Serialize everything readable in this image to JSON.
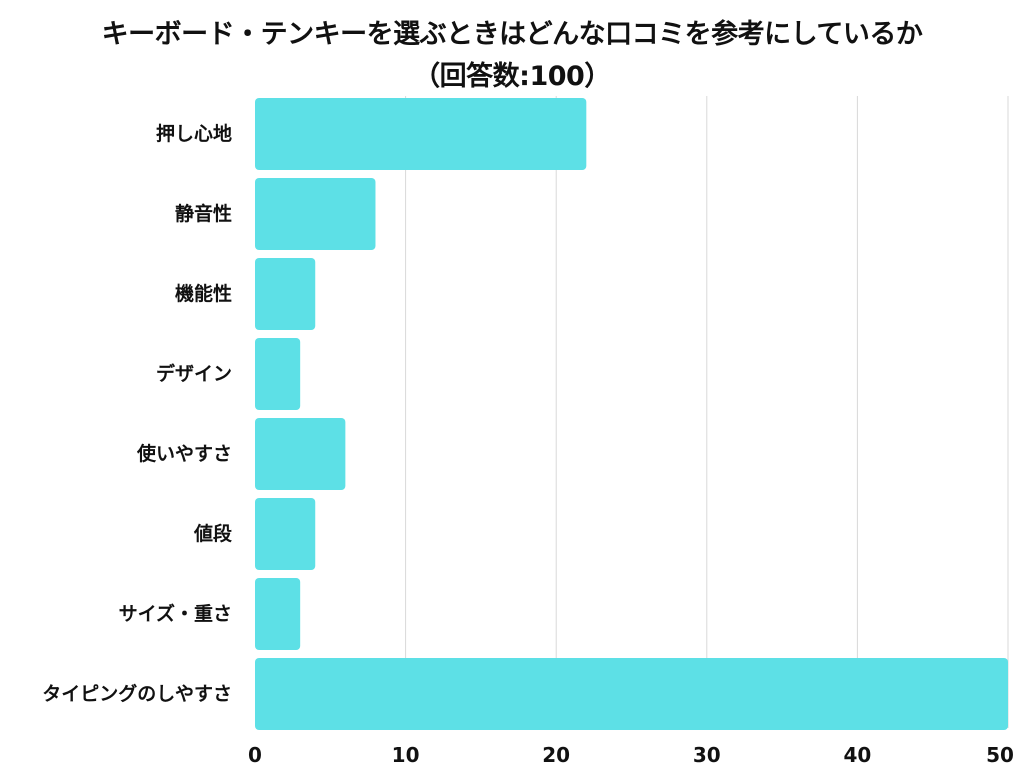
{
  "chart_data": {
    "type": "bar",
    "orientation": "horizontal",
    "title": "キーボード・テンキーを選ぶときはどんな口コミを参考にしているか",
    "subtitle": "（回答数:100）",
    "categories": [
      "押し心地",
      "静音性",
      "機能性",
      "デザイン",
      "使いやすさ",
      "値段",
      "サイズ・重さ",
      "タイピングのしやすさ"
    ],
    "values": [
      22,
      8,
      4,
      3,
      6,
      4,
      3,
      50
    ],
    "xlim": [
      0,
      50
    ],
    "xticks": [
      "0",
      "10",
      "20",
      "30",
      "40",
      "50"
    ],
    "xtick_values": [
      0,
      10,
      20,
      30,
      40,
      50
    ],
    "grid": "vertical",
    "bar_color": "#5de0e6",
    "grid_color": "#d9d9d9"
  }
}
